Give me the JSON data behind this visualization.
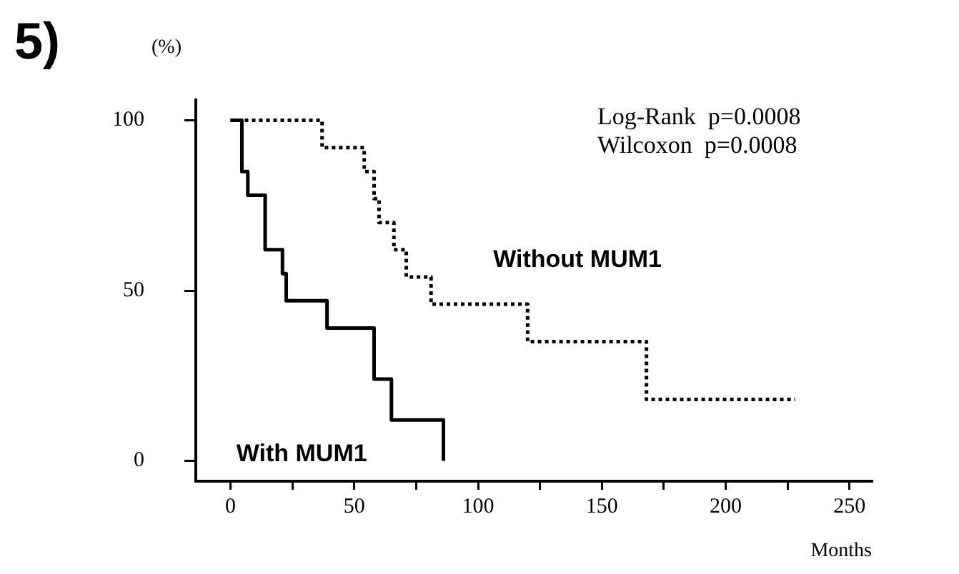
{
  "chart_data": {
    "type": "step",
    "title": "5)",
    "ylabel": "(%)",
    "xlabel": "Months",
    "annotations": [
      "Log-Rank  p=0.0008",
      "Wilcoxon  p=0.0008"
    ],
    "xlim": [
      -14,
      259
    ],
    "xticks": [
      0,
      {
        "value": 25,
        "label": null
      },
      50,
      {
        "value": 75,
        "label": null
      },
      100,
      {
        "value": 125,
        "label": null
      },
      150,
      {
        "value": 175,
        "label": null
      },
      200,
      {
        "value": 225,
        "label": null
      },
      250
    ],
    "ylim": [
      -6,
      106
    ],
    "yticks": [
      0,
      50,
      100
    ],
    "grid": false,
    "legend": false,
    "series": [
      {
        "name": "With MUM1",
        "color": "#000000",
        "line_style": "solid",
        "x": [
          0,
          4.6,
          7,
          14,
          21,
          22.5,
          39,
          58,
          65,
          86
        ],
        "values": [
          100,
          85,
          78,
          62,
          55,
          47,
          39,
          24,
          12,
          0
        ]
      },
      {
        "name": "Without MUM1",
        "color": "#000000",
        "line_style": "dotted",
        "x": [
          0,
          37,
          54,
          58,
          60,
          66,
          71,
          81,
          120,
          168,
          228
        ],
        "values": [
          100,
          92,
          85,
          77,
          70,
          62,
          54,
          46,
          35,
          18,
          18
        ]
      }
    ]
  }
}
